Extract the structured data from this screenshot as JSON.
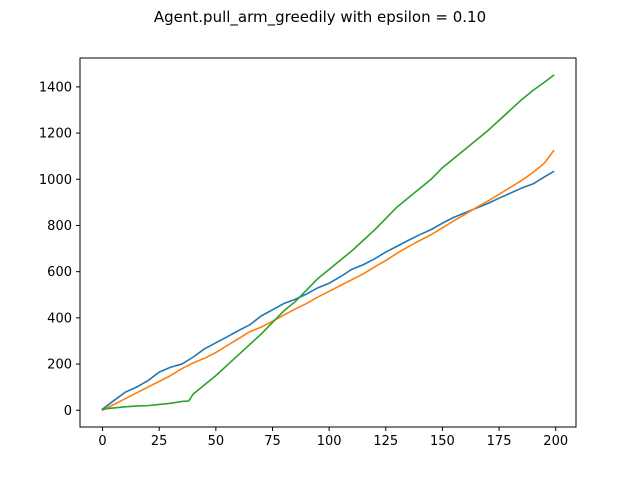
{
  "chart_data": {
    "type": "line",
    "title": "Agent.pull_arm_greedily with epsilon = 0.10",
    "xlabel": "",
    "ylabel": "",
    "xlim": [
      -9.95,
      208.95
    ],
    "ylim": [
      -72.5,
      1525
    ],
    "grid": false,
    "legend": "none",
    "xticks": [
      0,
      25,
      50,
      75,
      100,
      125,
      150,
      175,
      200
    ],
    "yticks": [
      0,
      200,
      400,
      600,
      800,
      1000,
      1200,
      1400
    ],
    "series": [
      {
        "color": "#1f77b4",
        "points": [
          [
            0,
            5
          ],
          [
            5,
            42
          ],
          [
            10,
            78
          ],
          [
            15,
            100
          ],
          [
            20,
            128
          ],
          [
            25,
            165
          ],
          [
            30,
            186
          ],
          [
            35,
            200
          ],
          [
            40,
            230
          ],
          [
            45,
            266
          ],
          [
            50,
            292
          ],
          [
            55,
            318
          ],
          [
            60,
            345
          ],
          [
            65,
            370
          ],
          [
            70,
            408
          ],
          [
            75,
            435
          ],
          [
            80,
            462
          ],
          [
            85,
            480
          ],
          [
            90,
            503
          ],
          [
            95,
            530
          ],
          [
            100,
            550
          ],
          [
            105,
            578
          ],
          [
            110,
            610
          ],
          [
            115,
            630
          ],
          [
            120,
            655
          ],
          [
            125,
            685
          ],
          [
            130,
            710
          ],
          [
            135,
            736
          ],
          [
            140,
            760
          ],
          [
            145,
            782
          ],
          [
            150,
            810
          ],
          [
            155,
            835
          ],
          [
            160,
            855
          ],
          [
            165,
            875
          ],
          [
            170,
            895
          ],
          [
            175,
            918
          ],
          [
            180,
            940
          ],
          [
            185,
            962
          ],
          [
            190,
            980
          ],
          [
            195,
            1010
          ],
          [
            199,
            1033
          ]
        ]
      },
      {
        "color": "#ff7f0e",
        "points": [
          [
            0,
            0
          ],
          [
            5,
            25
          ],
          [
            10,
            50
          ],
          [
            15,
            75
          ],
          [
            20,
            100
          ],
          [
            25,
            125
          ],
          [
            30,
            150
          ],
          [
            35,
            180
          ],
          [
            40,
            205
          ],
          [
            45,
            225
          ],
          [
            50,
            250
          ],
          [
            55,
            280
          ],
          [
            60,
            310
          ],
          [
            65,
            340
          ],
          [
            70,
            360
          ],
          [
            75,
            385
          ],
          [
            80,
            412
          ],
          [
            85,
            438
          ],
          [
            90,
            462
          ],
          [
            95,
            490
          ],
          [
            100,
            515
          ],
          [
            105,
            540
          ],
          [
            110,
            565
          ],
          [
            115,
            590
          ],
          [
            120,
            620
          ],
          [
            125,
            648
          ],
          [
            130,
            680
          ],
          [
            135,
            708
          ],
          [
            140,
            735
          ],
          [
            145,
            760
          ],
          [
            150,
            790
          ],
          [
            155,
            820
          ],
          [
            160,
            848
          ],
          [
            165,
            878
          ],
          [
            170,
            905
          ],
          [
            175,
            935
          ],
          [
            180,
            965
          ],
          [
            185,
            995
          ],
          [
            190,
            1030
          ],
          [
            195,
            1070
          ],
          [
            199,
            1123
          ]
        ]
      },
      {
        "color": "#2ca02c",
        "points": [
          [
            0,
            5
          ],
          [
            5,
            10
          ],
          [
            10,
            15
          ],
          [
            15,
            18
          ],
          [
            20,
            20
          ],
          [
            25,
            25
          ],
          [
            30,
            30
          ],
          [
            35,
            38
          ],
          [
            38,
            40
          ],
          [
            40,
            70
          ],
          [
            45,
            110
          ],
          [
            50,
            150
          ],
          [
            55,
            195
          ],
          [
            60,
            240
          ],
          [
            65,
            285
          ],
          [
            70,
            330
          ],
          [
            75,
            380
          ],
          [
            80,
            430
          ],
          [
            85,
            470
          ],
          [
            90,
            520
          ],
          [
            95,
            570
          ],
          [
            100,
            610
          ],
          [
            105,
            650
          ],
          [
            110,
            690
          ],
          [
            115,
            735
          ],
          [
            120,
            780
          ],
          [
            125,
            830
          ],
          [
            130,
            880
          ],
          [
            135,
            920
          ],
          [
            140,
            960
          ],
          [
            145,
            1000
          ],
          [
            150,
            1050
          ],
          [
            155,
            1090
          ],
          [
            160,
            1130
          ],
          [
            165,
            1170
          ],
          [
            170,
            1210
          ],
          [
            175,
            1255
          ],
          [
            180,
            1300
          ],
          [
            185,
            1345
          ],
          [
            190,
            1385
          ],
          [
            195,
            1420
          ],
          [
            199,
            1450
          ]
        ]
      }
    ]
  }
}
